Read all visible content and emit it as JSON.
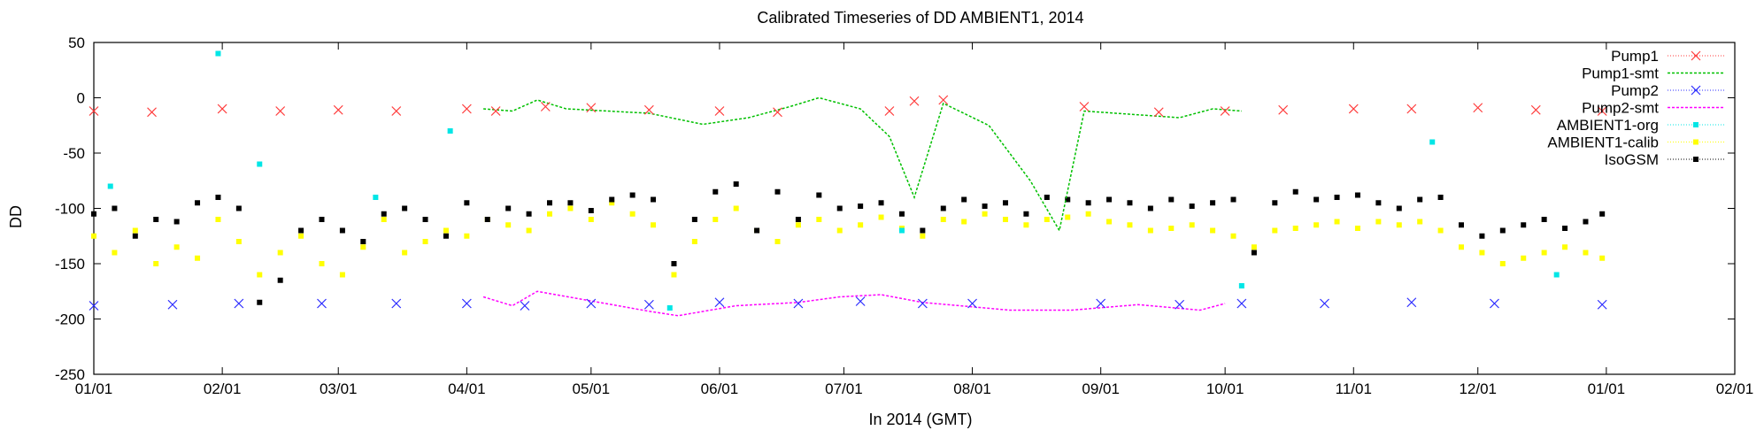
{
  "chart_data": {
    "type": "line",
    "title": "Calibrated Timeseries of DD AMBIENT1, 2014",
    "xlabel": "In 2014 (GMT)",
    "ylabel": "DD",
    "xlim": [
      "2014-01-01",
      "2015-02-01"
    ],
    "ylim": [
      -250,
      50
    ],
    "xticks": [
      {
        "label": "01/01",
        "date": "2014-01-01"
      },
      {
        "label": "02/01",
        "date": "2014-02-01"
      },
      {
        "label": "03/01",
        "date": "2014-03-01"
      },
      {
        "label": "04/01",
        "date": "2014-04-01"
      },
      {
        "label": "05/01",
        "date": "2014-05-01"
      },
      {
        "label": "06/01",
        "date": "2014-06-01"
      },
      {
        "label": "07/01",
        "date": "2014-07-01"
      },
      {
        "label": "08/01",
        "date": "2014-08-01"
      },
      {
        "label": "09/01",
        "date": "2014-09-01"
      },
      {
        "label": "10/01",
        "date": "2014-10-01"
      },
      {
        "label": "11/01",
        "date": "2014-11-01"
      },
      {
        "label": "12/01",
        "date": "2014-12-01"
      },
      {
        "label": "01/01",
        "date": "2015-01-01"
      },
      {
        "label": "02/01",
        "date": "2015-02-01"
      }
    ],
    "yticks": [
      50,
      0,
      -50,
      -100,
      -150,
      -200,
      -250
    ],
    "grid": false,
    "legend_position": "top-right",
    "series": [
      {
        "name": "Pump1",
        "marker": "x",
        "color": "#ff3b3b",
        "x": [
          "2014-01-01",
          "2014-01-15",
          "2014-02-01",
          "2014-02-15",
          "2014-03-01",
          "2014-03-15",
          "2014-04-01",
          "2014-04-08",
          "2014-04-20",
          "2014-05-01",
          "2014-05-15",
          "2014-06-01",
          "2014-06-15",
          "2014-07-12",
          "2014-07-18",
          "2014-07-25",
          "2014-08-28",
          "2014-09-15",
          "2014-10-01",
          "2014-10-15",
          "2014-11-01",
          "2014-11-15",
          "2014-12-01",
          "2014-12-15",
          "2014-12-31"
        ],
        "y": [
          -12,
          -13,
          -10,
          -12,
          -11,
          -12,
          -10,
          -12,
          -8,
          -9,
          -11,
          -12,
          -13,
          -12,
          -3,
          -2,
          -8,
          -13,
          -12,
          -11,
          -10,
          -10,
          -9,
          -11,
          -12
        ]
      },
      {
        "name": "Pump1-smt",
        "color": "#00c000",
        "x": [
          "2014-04-05",
          "2014-04-12",
          "2014-04-18",
          "2014-04-25",
          "2014-05-15",
          "2014-05-28",
          "2014-06-08",
          "2014-06-18",
          "2014-06-25",
          "2014-07-05",
          "2014-07-12",
          "2014-07-18",
          "2014-07-25",
          "2014-08-05",
          "2014-08-15",
          "2014-08-22",
          "2014-08-28",
          "2014-09-20",
          "2014-09-28",
          "2014-10-05"
        ],
        "y": [
          -10,
          -12,
          -2,
          -10,
          -14,
          -24,
          -18,
          -8,
          0,
          -10,
          -35,
          -90,
          -5,
          -25,
          -75,
          -120,
          -12,
          -18,
          -10,
          -12
        ]
      },
      {
        "name": "Pump2",
        "marker": "x",
        "color": "#2b2bff",
        "x": [
          "2014-01-01",
          "2014-01-20",
          "2014-02-05",
          "2014-02-25",
          "2014-03-15",
          "2014-04-01",
          "2014-04-15",
          "2014-05-01",
          "2014-05-15",
          "2014-06-01",
          "2014-06-20",
          "2014-07-05",
          "2014-07-20",
          "2014-08-01",
          "2014-09-01",
          "2014-09-20",
          "2014-10-05",
          "2014-10-25",
          "2014-11-15",
          "2014-12-05",
          "2014-12-31"
        ],
        "y": [
          -188,
          -187,
          -186,
          -186,
          -186,
          -186,
          -188,
          -186,
          -187,
          -185,
          -186,
          -184,
          -186,
          -186,
          -186,
          -187,
          -186,
          -186,
          -185,
          -186,
          -187
        ]
      },
      {
        "name": "Pump2-smt",
        "color": "#ff00ff",
        "x": [
          "2014-04-05",
          "2014-04-12",
          "2014-04-18",
          "2014-05-15",
          "2014-05-22",
          "2014-06-05",
          "2014-06-20",
          "2014-06-30",
          "2014-07-10",
          "2014-07-20",
          "2014-08-10",
          "2014-08-25",
          "2014-09-10",
          "2014-09-25",
          "2014-10-01"
        ],
        "y": [
          -180,
          -188,
          -175,
          -193,
          -197,
          -188,
          -185,
          -180,
          -178,
          -185,
          -192,
          -192,
          -187,
          -192,
          -186
        ]
      },
      {
        "name": "AMBIENT1-org",
        "marker": "dot",
        "color": "#00e6e6",
        "x": [
          "2014-01-05",
          "2014-01-31",
          "2014-02-10",
          "2014-03-10",
          "2014-03-28",
          "2014-05-20",
          "2014-07-15",
          "2014-10-05",
          "2014-11-20",
          "2014-12-20"
        ],
        "y": [
          -80,
          40,
          -60,
          -90,
          -30,
          -190,
          -120,
          -170,
          -40,
          -160
        ]
      },
      {
        "name": "AMBIENT1-calib",
        "marker": "dot",
        "color": "#ffff00",
        "x": [
          "2014-01-01",
          "2014-01-06",
          "2014-01-11",
          "2014-01-16",
          "2014-01-21",
          "2014-01-26",
          "2014-01-31",
          "2014-02-05",
          "2014-02-10",
          "2014-02-15",
          "2014-02-20",
          "2014-02-25",
          "2014-03-02",
          "2014-03-07",
          "2014-03-12",
          "2014-03-17",
          "2014-03-22",
          "2014-03-27",
          "2014-04-01",
          "2014-04-06",
          "2014-04-11",
          "2014-04-16",
          "2014-04-21",
          "2014-04-26",
          "2014-05-01",
          "2014-05-06",
          "2014-05-11",
          "2014-05-16",
          "2014-05-21",
          "2014-05-26",
          "2014-05-31",
          "2014-06-05",
          "2014-06-10",
          "2014-06-15",
          "2014-06-20",
          "2014-06-25",
          "2014-06-30",
          "2014-07-05",
          "2014-07-10",
          "2014-07-15",
          "2014-07-20",
          "2014-07-25",
          "2014-07-30",
          "2014-08-04",
          "2014-08-09",
          "2014-08-14",
          "2014-08-19",
          "2014-08-24",
          "2014-08-29",
          "2014-09-03",
          "2014-09-08",
          "2014-09-13",
          "2014-09-18",
          "2014-09-23",
          "2014-09-28",
          "2014-10-03",
          "2014-10-08",
          "2014-10-13",
          "2014-10-18",
          "2014-10-23",
          "2014-10-28",
          "2014-11-02",
          "2014-11-07",
          "2014-11-12",
          "2014-11-17",
          "2014-11-22",
          "2014-11-27",
          "2014-12-02",
          "2014-12-07",
          "2014-12-12",
          "2014-12-17",
          "2014-12-22",
          "2014-12-27",
          "2014-12-31"
        ],
        "y": [
          -125,
          -140,
          -120,
          -150,
          -135,
          -145,
          -110,
          -130,
          -160,
          -140,
          -125,
          -150,
          -160,
          -135,
          -110,
          -140,
          -130,
          -120,
          -125,
          -110,
          -115,
          -120,
          -105,
          -100,
          -110,
          -95,
          -105,
          -115,
          -160,
          -130,
          -110,
          -100,
          -120,
          -130,
          -115,
          -110,
          -120,
          -115,
          -108,
          -118,
          -125,
          -110,
          -112,
          -105,
          -110,
          -115,
          -110,
          -108,
          -105,
          -112,
          -115,
          -120,
          -118,
          -115,
          -120,
          -125,
          -135,
          -120,
          -118,
          -115,
          -112,
          -118,
          -112,
          -115,
          -112,
          -120,
          -135,
          -140,
          -150,
          -145,
          -140,
          -135,
          -140,
          -145
        ]
      },
      {
        "name": "IsoGSM",
        "marker": "square",
        "color": "#000000",
        "x": [
          "2014-01-01",
          "2014-01-06",
          "2014-01-11",
          "2014-01-16",
          "2014-01-21",
          "2014-01-26",
          "2014-01-31",
          "2014-02-05",
          "2014-02-10",
          "2014-02-15",
          "2014-02-20",
          "2014-02-25",
          "2014-03-02",
          "2014-03-07",
          "2014-03-12",
          "2014-03-17",
          "2014-03-22",
          "2014-03-27",
          "2014-04-01",
          "2014-04-06",
          "2014-04-11",
          "2014-04-16",
          "2014-04-21",
          "2014-04-26",
          "2014-05-01",
          "2014-05-06",
          "2014-05-11",
          "2014-05-16",
          "2014-05-21",
          "2014-05-26",
          "2014-05-31",
          "2014-06-05",
          "2014-06-10",
          "2014-06-15",
          "2014-06-20",
          "2014-06-25",
          "2014-06-30",
          "2014-07-05",
          "2014-07-10",
          "2014-07-15",
          "2014-07-20",
          "2014-07-25",
          "2014-07-30",
          "2014-08-04",
          "2014-08-09",
          "2014-08-14",
          "2014-08-19",
          "2014-08-24",
          "2014-08-29",
          "2014-09-03",
          "2014-09-08",
          "2014-09-13",
          "2014-09-18",
          "2014-09-23",
          "2014-09-28",
          "2014-10-03",
          "2014-10-08",
          "2014-10-13",
          "2014-10-18",
          "2014-10-23",
          "2014-10-28",
          "2014-11-02",
          "2014-11-07",
          "2014-11-12",
          "2014-11-17",
          "2014-11-22",
          "2014-11-27",
          "2014-12-02",
          "2014-12-07",
          "2014-12-12",
          "2014-12-17",
          "2014-12-22",
          "2014-12-27",
          "2014-12-31"
        ],
        "y": [
          -105,
          -100,
          -125,
          -110,
          -112,
          -95,
          -90,
          -100,
          -185,
          -165,
          -120,
          -110,
          -120,
          -130,
          -105,
          -100,
          -110,
          -125,
          -95,
          -110,
          -100,
          -105,
          -95,
          -95,
          -102,
          -92,
          -88,
          -92,
          -150,
          -110,
          -85,
          -78,
          -120,
          -85,
          -110,
          -88,
          -100,
          -98,
          -95,
          -105,
          -120,
          -100,
          -92,
          -98,
          -95,
          -105,
          -90,
          -92,
          -95,
          -92,
          -95,
          -100,
          -92,
          -98,
          -95,
          -92,
          -140,
          -95,
          -85,
          -92,
          -90,
          -88,
          -95,
          -100,
          -92,
          -90,
          -115,
          -125,
          -120,
          -115,
          -110,
          -118,
          -112,
          -105
        ]
      }
    ]
  }
}
